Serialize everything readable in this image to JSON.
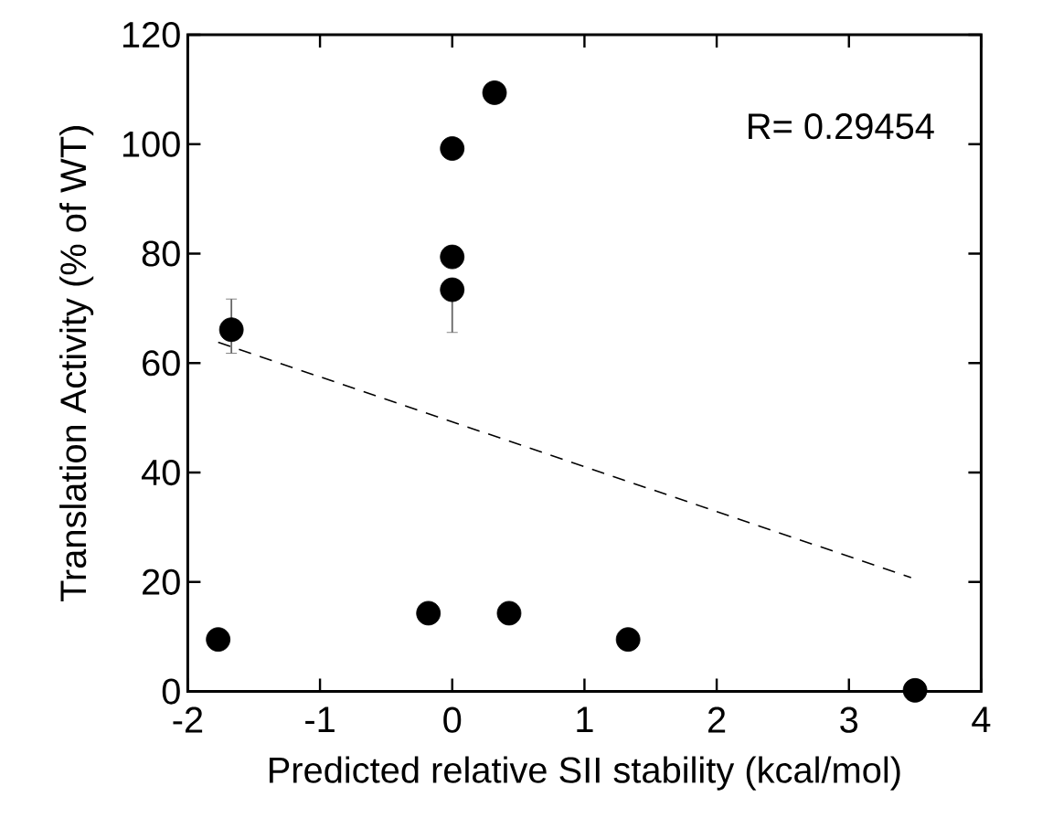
{
  "chart_data": {
    "type": "scatter",
    "xlabel": "Predicted relative SII stability (kcal/mol)",
    "ylabel": "Translation Activity (% of WT)",
    "annotations": [
      "R= 0.29454"
    ],
    "xlim": [
      -2,
      4
    ],
    "xticks": [
      -2,
      -1,
      0,
      1,
      2,
      3,
      4
    ],
    "ylim": [
      0,
      120
    ],
    "yticks": [
      0,
      20,
      40,
      60,
      80,
      100,
      120
    ],
    "grid": false,
    "series": [
      {
        "color": "#000000",
        "marker": "circle",
        "x": [
          -1.77,
          -1.67,
          0.0,
          0.32,
          0.0,
          0.0,
          -0.18,
          0.43,
          1.33,
          3.5
        ],
        "values": [
          9.5,
          66.1,
          99.2,
          109.4,
          79.4,
          73.4,
          14.3,
          14.3,
          9.5,
          0.2
        ],
        "errors": [
          null,
          [
            61.8,
            71.7
          ],
          null,
          null,
          null,
          [
            65.6,
            73.4
          ],
          null,
          null,
          null,
          null
        ]
      },
      {
        "type": "line",
        "color": "#000000",
        "line_style": "dashed",
        "marker": "none",
        "x": [
          -1.77,
          3.47
        ],
        "values": [
          63.8,
          20.8
        ]
      }
    ]
  }
}
